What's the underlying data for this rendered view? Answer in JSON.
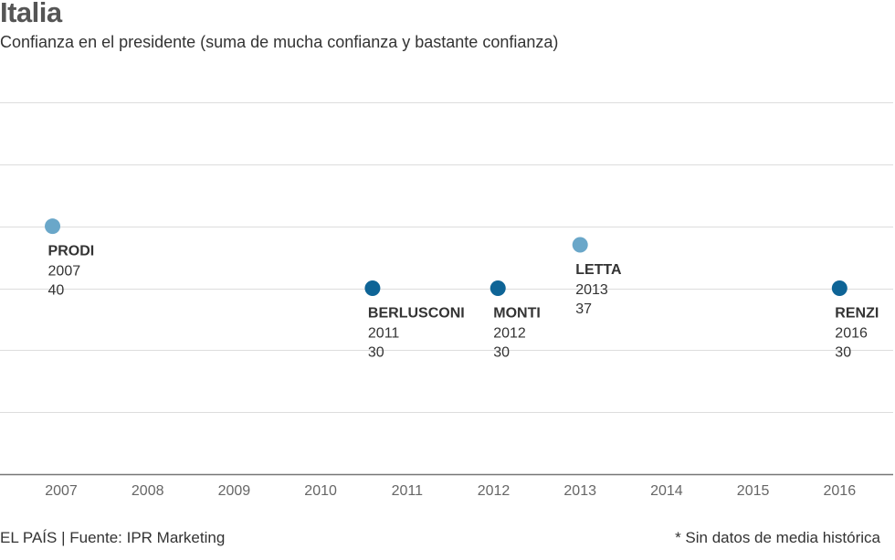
{
  "header": {
    "title": "Italia",
    "subtitle": "Confianza en el presidente (suma de mucha confianza y bastante confianza)"
  },
  "footer": {
    "source": "EL PAÍS | Fuente: IPR Marketing",
    "note": "* Sin datos de media histórica"
  },
  "colors": {
    "light_point": "#6aa7c9",
    "dark_point": "#0e6496",
    "grid": "#dddddd",
    "axis": "#777777"
  },
  "chart_data": {
    "type": "scatter",
    "title": "Italia",
    "subtitle": "Confianza en el presidente (suma de mucha confianza y bastante confianza)",
    "xlabel": "",
    "ylabel": "",
    "x_ticks": [
      "2007",
      "2008",
      "2009",
      "2010",
      "2011",
      "2012",
      "2013",
      "2014",
      "2015",
      "2016"
    ],
    "xlim": [
      2006.6,
      2016.7
    ],
    "ylim": [
      0,
      60
    ],
    "grid": true,
    "points": [
      {
        "name": "PRODI",
        "x": 2006.9,
        "year": "2007",
        "value": 40,
        "label": "40",
        "color": "light",
        "label_side": "below"
      },
      {
        "name": "BERLUSCONI",
        "x": 2010.6,
        "year": "2011",
        "value": 30,
        "label": "30",
        "color": "dark",
        "label_side": "below"
      },
      {
        "name": "MONTI",
        "x": 2012.05,
        "year": "2012",
        "value": 30,
        "label": "30",
        "color": "dark",
        "label_side": "below"
      },
      {
        "name": "LETTA",
        "x": 2013.0,
        "year": "2013",
        "value": 37,
        "label": "37",
        "color": "light",
        "label_side": "below"
      },
      {
        "name": "RENZI",
        "x": 2016.0,
        "year": "2016",
        "value": 30,
        "label": "30",
        "color": "dark",
        "label_side": "below"
      }
    ]
  }
}
